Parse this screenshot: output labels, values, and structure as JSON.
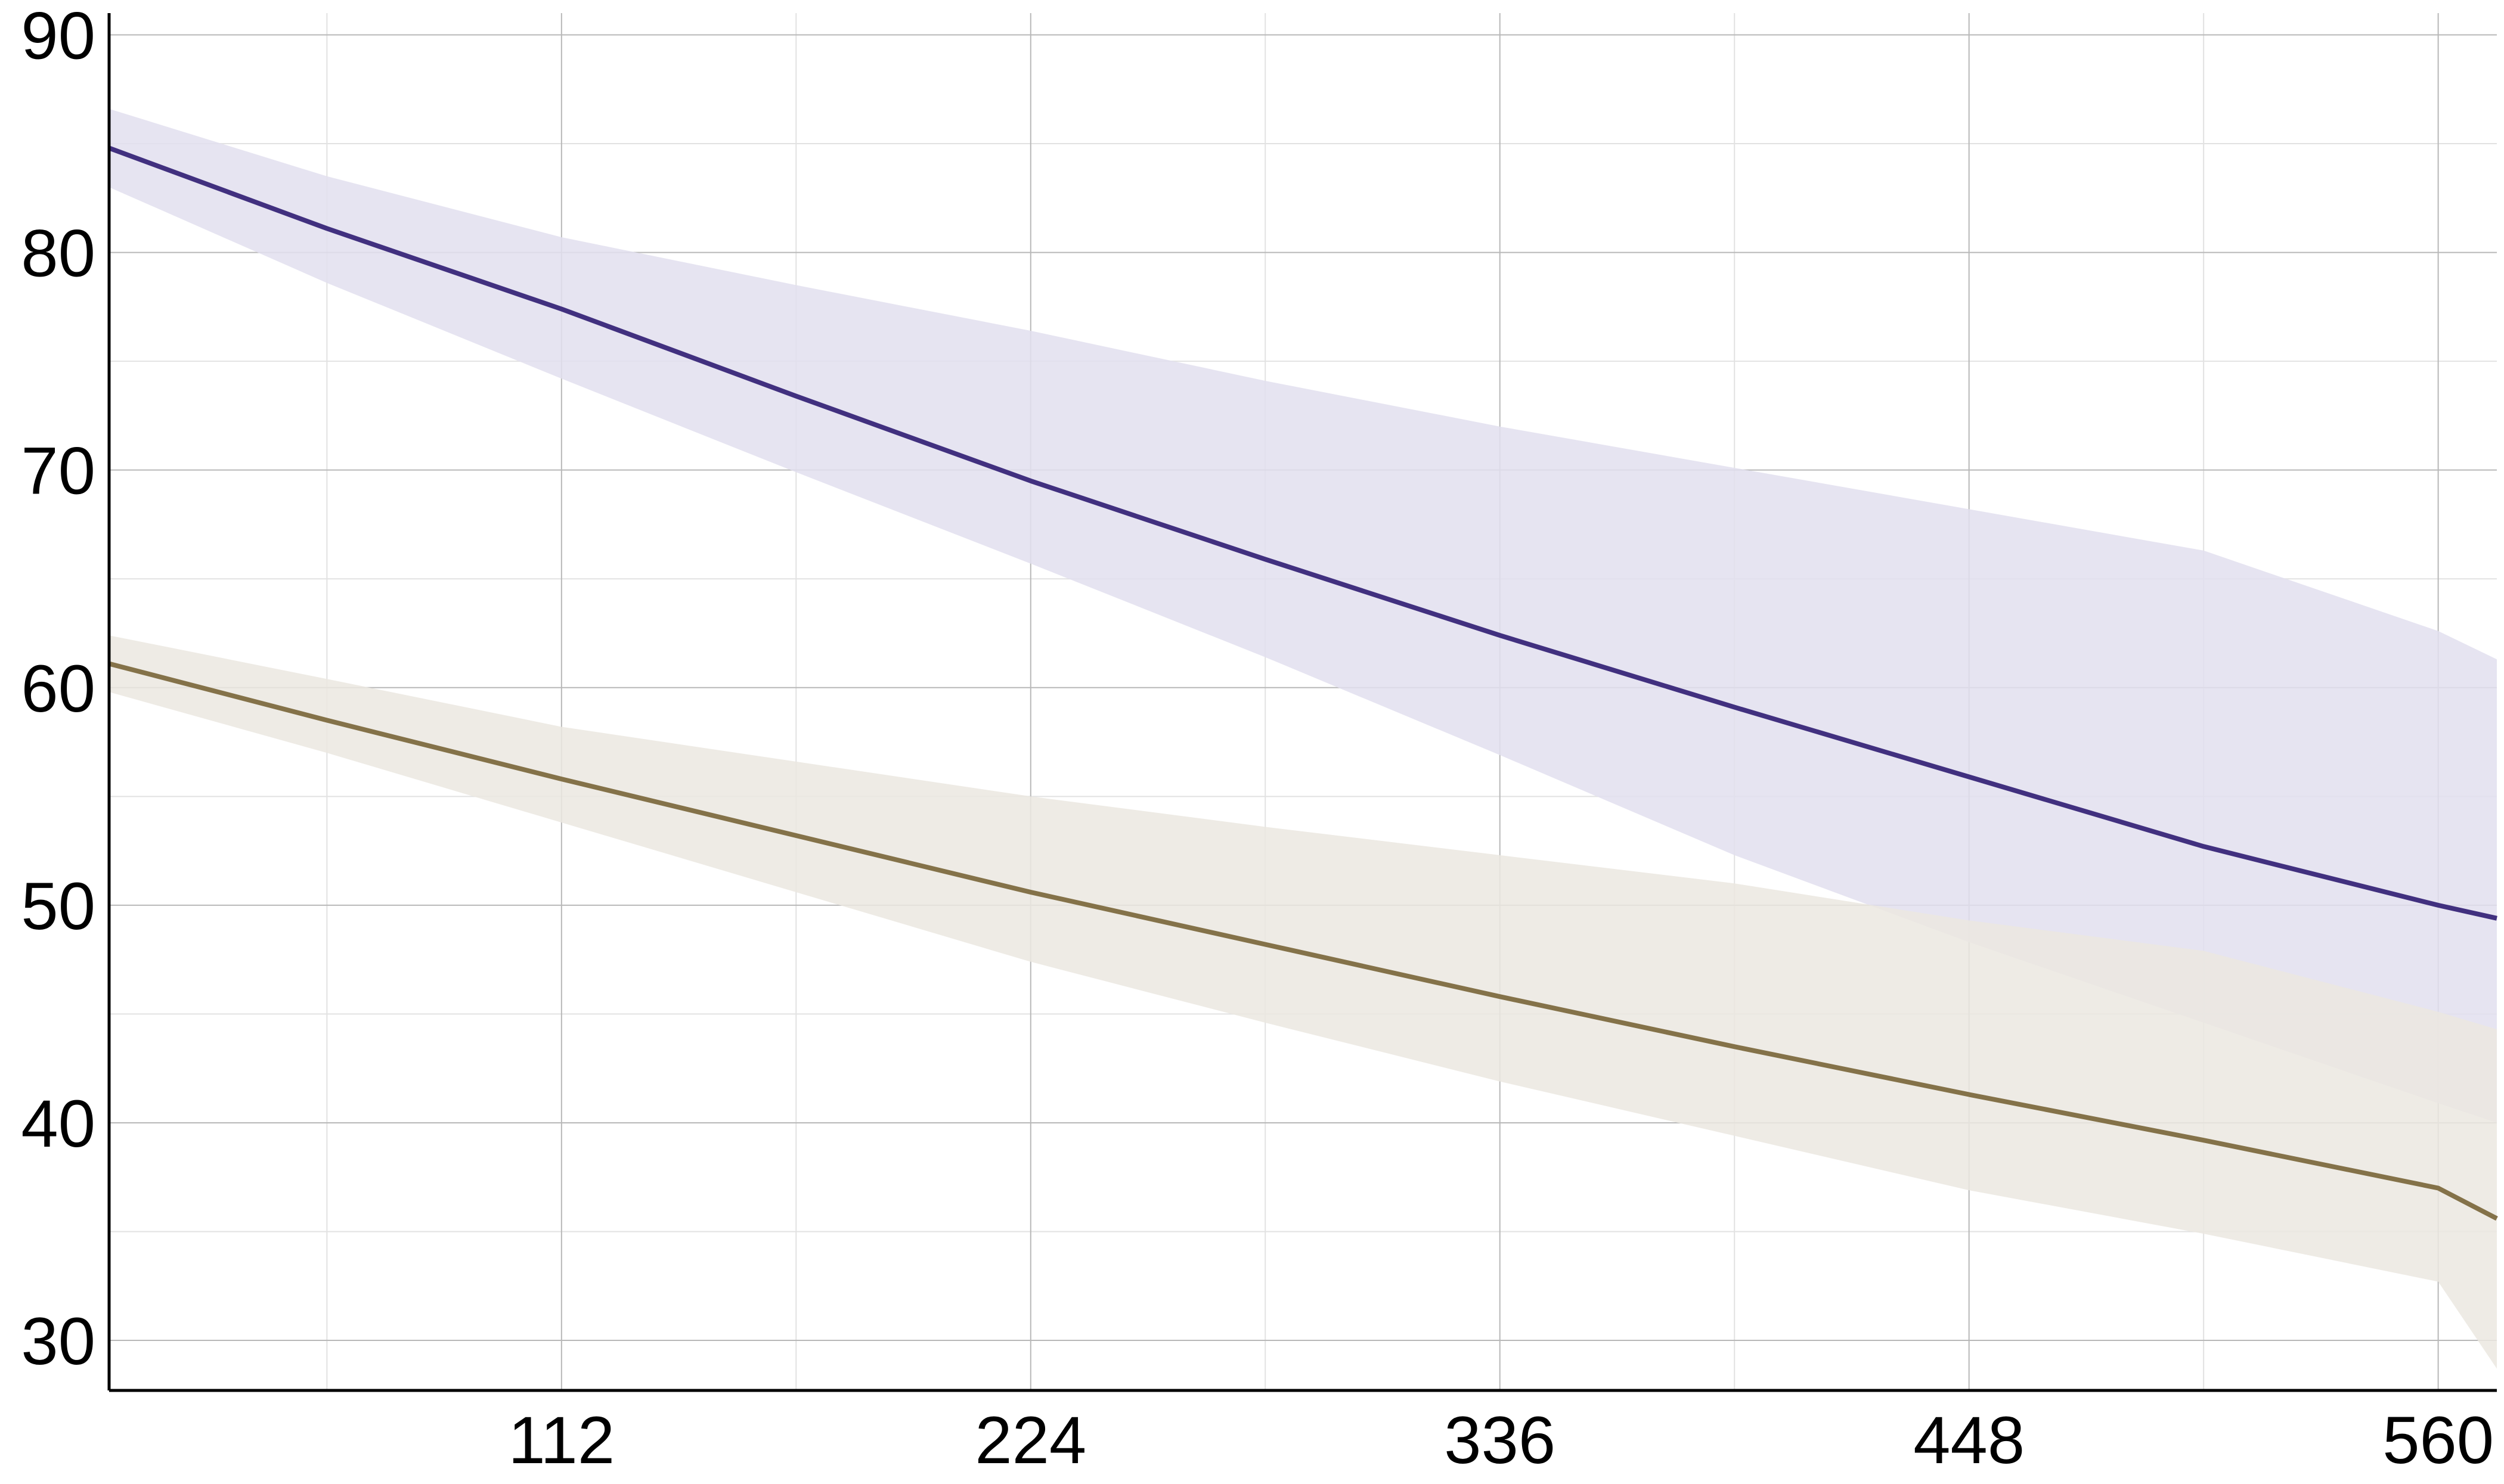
{
  "chart_data": {
    "type": "area",
    "title": "",
    "xlabel": "",
    "ylabel": "",
    "xlim": [
      4,
      574
    ],
    "ylim": [
      27.7,
      91
    ],
    "x_ticks": [
      112,
      224,
      336,
      448,
      560
    ],
    "x_tick_labels": [
      "112",
      "224",
      "336",
      "448",
      "560"
    ],
    "x_minor_ticks": [
      56,
      168,
      280,
      392,
      504
    ],
    "y_ticks": [
      30,
      40,
      50,
      60,
      70,
      80,
      90
    ],
    "y_tick_labels": [
      "30",
      "40",
      "50",
      "60",
      "70",
      "80",
      "90"
    ],
    "y_minor_ticks": [
      35,
      45,
      55,
      65,
      75,
      85
    ],
    "grid": true,
    "legend": "none",
    "series": [
      {
        "color": "#41307f",
        "band_color": "#e2dfee",
        "x": [
          4,
          56,
          112,
          168,
          224,
          280,
          336,
          392,
          448,
          504,
          560,
          574
        ],
        "y": [
          84.8,
          81.1,
          77.4,
          73.4,
          69.5,
          65.9,
          62.4,
          59.1,
          55.9,
          52.7,
          50.0,
          49.4
        ],
        "lower": [
          83.0,
          78.6,
          74.2,
          69.9,
          65.7,
          61.4,
          56.9,
          52.3,
          48.3,
          44.6,
          40.9,
          40.0
        ],
        "upper": [
          86.6,
          83.5,
          80.7,
          78.5,
          76.4,
          74.1,
          72.0,
          70.1,
          68.2,
          66.3,
          62.6,
          61.3
        ]
      },
      {
        "color": "#847249",
        "band_color": "#ebe8e1",
        "x": [
          4,
          56,
          112,
          168,
          224,
          280,
          336,
          392,
          448,
          504,
          560,
          574
        ],
        "y": [
          61.1,
          58.5,
          55.8,
          53.2,
          50.6,
          48.2,
          45.8,
          43.5,
          41.3,
          39.2,
          37.0,
          35.6
        ],
        "lower": [
          59.8,
          57.0,
          53.8,
          50.6,
          47.4,
          44.6,
          41.9,
          39.4,
          36.9,
          34.9,
          32.7,
          28.7
        ],
        "upper": [
          62.4,
          60.4,
          58.2,
          56.6,
          55.0,
          53.6,
          52.3,
          51.0,
          49.3,
          47.9,
          45.1,
          44.3
        ]
      }
    ]
  }
}
